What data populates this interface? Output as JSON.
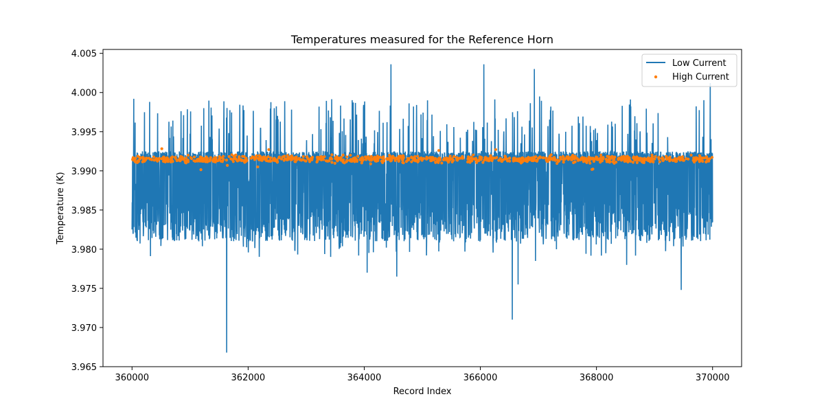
{
  "chart_data": {
    "type": "line",
    "title": "Temperatures measured for the Reference Horn",
    "xlabel": "Record Index",
    "ylabel": "Temperature (K)",
    "xlim": [
      359500,
      370500
    ],
    "ylim": [
      3.965,
      4.0055
    ],
    "xticks": [
      360000,
      362000,
      364000,
      366000,
      368000,
      370000
    ],
    "xtick_labels": [
      "360000",
      "362000",
      "364000",
      "366000",
      "368000",
      "370000"
    ],
    "yticks": [
      3.965,
      3.97,
      3.975,
      3.98,
      3.985,
      3.99,
      3.995,
      4.0,
      4.005
    ],
    "ytick_labels": [
      "3.965",
      "3.970",
      "3.975",
      "3.980",
      "3.985",
      "3.990",
      "3.995",
      "4.000",
      "4.005"
    ],
    "grid": false,
    "legend_position": "top-right",
    "colors": {
      "low": "#1f77b4",
      "high": "#ff7f0e"
    },
    "series": [
      {
        "name": "Low Current",
        "kind": "line",
        "x_range": [
          360000,
          370000
        ],
        "band_center": 3.9895,
        "band_low": 3.9835,
        "band_high": 3.9925,
        "spikes": [
          {
            "x": 361630,
            "y": 3.9668
          },
          {
            "x": 364460,
            "y": 4.0036
          },
          {
            "x": 366060,
            "y": 4.0036
          },
          {
            "x": 366550,
            "y": 3.971
          },
          {
            "x": 366650,
            "y": 3.9755
          },
          {
            "x": 369460,
            "y": 3.9748
          },
          {
            "x": 369960,
            "y": 4.0012
          },
          {
            "x": 364560,
            "y": 3.9765
          },
          {
            "x": 364050,
            "y": 3.977
          },
          {
            "x": 360030,
            "y": 3.9992
          },
          {
            "x": 362450,
            "y": 3.998
          },
          {
            "x": 366950,
            "y": 3.9785
          },
          {
            "x": 368520,
            "y": 3.978
          },
          {
            "x": 367020,
            "y": 3.9995
          },
          {
            "x": 365090,
            "y": 3.999
          },
          {
            "x": 366930,
            "y": 4.003
          }
        ]
      },
      {
        "name": "High Current",
        "kind": "scatter",
        "x_range": [
          360000,
          370000
        ],
        "center": 3.9915,
        "spread": 0.0004
      }
    ]
  }
}
